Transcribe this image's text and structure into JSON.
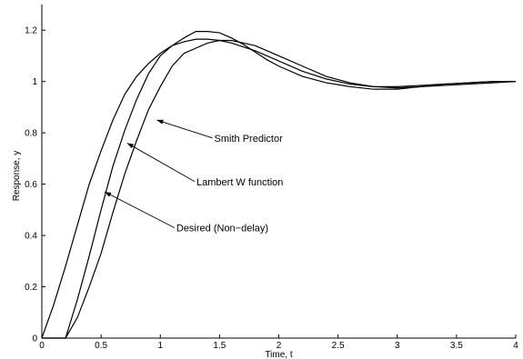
{
  "chart_data": {
    "type": "line",
    "title": "",
    "xlabel": "Time,  t",
    "ylabel": "Response,  y",
    "xlim": [
      0,
      4
    ],
    "ylim": [
      0,
      1.3
    ],
    "xticks": [
      0,
      0.5,
      1,
      1.5,
      2,
      2.5,
      3,
      3.5,
      4
    ],
    "xtick_labels": [
      "0",
      "0.5",
      "1",
      "1.5",
      "2",
      "2.5",
      "3",
      "3.5",
      "4"
    ],
    "yticks": [
      0,
      0.2,
      0.4,
      0.6,
      0.8,
      1,
      1.2
    ],
    "ytick_labels": [
      "0",
      "0.2",
      "0.4",
      "0.6",
      "0.8",
      "1",
      "1.2"
    ],
    "grid": false,
    "series": [
      {
        "name": "Desired (Non−delay)",
        "x": [
          0,
          0.1,
          0.2,
          0.3,
          0.4,
          0.5,
          0.6,
          0.7,
          0.8,
          0.9,
          1.0,
          1.1,
          1.2,
          1.3,
          1.4,
          1.5,
          1.6,
          1.7,
          1.8,
          1.9,
          2.0,
          2.2,
          2.4,
          2.6,
          2.8,
          3.0,
          3.2,
          3.4,
          3.6,
          3.8,
          4.0
        ],
        "y": [
          0,
          0.13,
          0.28,
          0.44,
          0.6,
          0.73,
          0.85,
          0.95,
          1.02,
          1.07,
          1.11,
          1.14,
          1.155,
          1.165,
          1.165,
          1.16,
          1.15,
          1.135,
          1.12,
          1.1,
          1.08,
          1.04,
          1.01,
          0.99,
          0.98,
          0.98,
          0.985,
          0.99,
          0.995,
          1.0,
          1.0
        ]
      },
      {
        "name": "Lambert W function",
        "x": [
          0,
          0.2,
          0.3,
          0.4,
          0.5,
          0.6,
          0.7,
          0.8,
          0.9,
          1.0,
          1.1,
          1.2,
          1.3,
          1.4,
          1.5,
          1.6,
          1.7,
          1.8,
          1.9,
          2.0,
          2.2,
          2.4,
          2.6,
          2.8,
          3.0,
          3.2,
          3.4,
          3.6,
          3.8,
          4.0
        ],
        "y": [
          0,
          0,
          0.15,
          0.32,
          0.5,
          0.67,
          0.81,
          0.93,
          1.03,
          1.1,
          1.14,
          1.17,
          1.195,
          1.195,
          1.19,
          1.17,
          1.145,
          1.115,
          1.085,
          1.06,
          1.02,
          0.995,
          0.98,
          0.97,
          0.97,
          0.98,
          0.99,
          0.995,
          1.0,
          1.0
        ]
      },
      {
        "name": "Smith Predictor",
        "x": [
          0,
          0.2,
          0.3,
          0.4,
          0.5,
          0.6,
          0.7,
          0.8,
          0.9,
          1.0,
          1.1,
          1.2,
          1.3,
          1.4,
          1.5,
          1.6,
          1.7,
          1.8,
          1.9,
          2.0,
          2.2,
          2.4,
          2.6,
          2.8,
          3.0,
          3.2,
          3.4,
          3.6,
          3.8,
          4.0
        ],
        "y": [
          0,
          0,
          0.08,
          0.2,
          0.33,
          0.49,
          0.64,
          0.77,
          0.89,
          0.98,
          1.06,
          1.11,
          1.13,
          1.15,
          1.16,
          1.16,
          1.15,
          1.14,
          1.12,
          1.1,
          1.06,
          1.02,
          0.995,
          0.98,
          0.975,
          0.98,
          0.985,
          0.99,
          0.995,
          1.0
        ]
      }
    ],
    "annotations": [
      {
        "text": "Smith Predictor",
        "label_x": 1.44,
        "label_y": 0.78,
        "point_x": 0.97,
        "point_y": 0.85
      },
      {
        "text": "Lambert W function",
        "label_x": 1.29,
        "label_y": 0.61,
        "point_x": 0.72,
        "point_y": 0.76
      },
      {
        "text": "Desired (Non−delay)",
        "label_x": 1.12,
        "label_y": 0.43,
        "point_x": 0.53,
        "point_y": 0.57
      }
    ]
  }
}
